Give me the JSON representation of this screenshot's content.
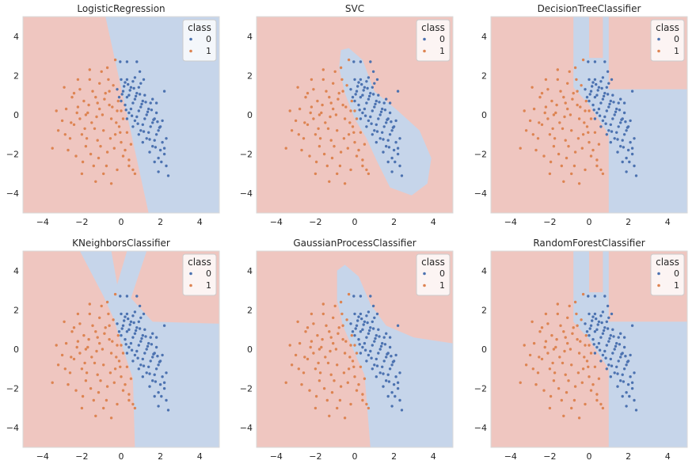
{
  "colors": {
    "class0": "#4c72b0",
    "class1": "#dd8452",
    "region0": "#c6d5ea",
    "region1": "#efc6c0",
    "frame": "#d9d9d9",
    "legend_bg": "#ffffff"
  },
  "chart_data": [
    {
      "type": "scatter",
      "title": "LogisticRegression",
      "xlim": [
        -5,
        5
      ],
      "ylim": [
        -5,
        5
      ],
      "xticks": [
        -4,
        -2,
        0,
        2,
        4
      ],
      "yticks": [
        -4,
        -2,
        0,
        2,
        4
      ],
      "tick_labels_x": [
        "−4",
        "−2",
        "0",
        "2",
        "4"
      ],
      "tick_labels_y": [
        "−4",
        "−2",
        "0",
        "2",
        "4"
      ],
      "legend": {
        "title": "class",
        "entries": [
          "0",
          "1"
        ],
        "placement": "top-right"
      },
      "decision_region_class0": [
        [
          -0.8,
          5
        ],
        [
          5,
          5
        ],
        [
          5,
          -5
        ],
        [
          1.4,
          -5
        ],
        [
          -0.8,
          5
        ]
      ]
    },
    {
      "type": "scatter",
      "title": "SVC",
      "xlim": [
        -5,
        5
      ],
      "ylim": [
        -5,
        5
      ],
      "xticks": [
        -4,
        -2,
        0,
        2,
        4
      ],
      "yticks": [
        -4,
        -2,
        0,
        2,
        4
      ],
      "tick_labels_x": [
        "−4",
        "−2",
        "0",
        "2",
        "4"
      ],
      "tick_labels_y": [
        "−4",
        "−2",
        "0",
        "2",
        "4"
      ],
      "legend": {
        "title": "class",
        "entries": [
          "0",
          "1"
        ],
        "placement": "top-right"
      },
      "decision_region_class0": [
        [
          -0.7,
          3.3
        ],
        [
          -0.3,
          3.4
        ],
        [
          0.4,
          2.8
        ],
        [
          1.0,
          1.2
        ],
        [
          2.2,
          0.2
        ],
        [
          3.3,
          -0.8
        ],
        [
          3.9,
          -2.2
        ],
        [
          3.7,
          -3.5
        ],
        [
          2.9,
          -4.1
        ],
        [
          1.8,
          -3.7
        ],
        [
          1.1,
          -2.3
        ],
        [
          0.6,
          -1.2
        ],
        [
          0.0,
          -0.2
        ],
        [
          -0.5,
          1.1
        ],
        [
          -0.8,
          2.4
        ],
        [
          -0.7,
          3.3
        ]
      ]
    },
    {
      "type": "scatter",
      "title": "DecisionTreeClassifier",
      "xlim": [
        -5,
        5
      ],
      "ylim": [
        -5,
        5
      ],
      "xticks": [
        -4,
        -2,
        0,
        2,
        4
      ],
      "yticks": [
        -4,
        -2,
        0,
        2,
        4
      ],
      "tick_labels_x": [
        "−4",
        "−2",
        "0",
        "2",
        "4"
      ],
      "tick_labels_y": [
        "−4",
        "−2",
        "0",
        "2",
        "4"
      ],
      "legend": {
        "title": "class",
        "entries": [
          "0",
          "1"
        ],
        "placement": "top-right"
      },
      "decision_region_class0": [
        [
          -0.8,
          5
        ],
        [
          0.0,
          5
        ],
        [
          0.0,
          2.9
        ],
        [
          0.7,
          2.9
        ],
        [
          0.7,
          5
        ],
        [
          1.0,
          5
        ],
        [
          1.0,
          1.3
        ],
        [
          5,
          1.3
        ],
        [
          5,
          -5
        ],
        [
          1.0,
          -5
        ],
        [
          1.0,
          -1.0
        ],
        [
          0.0,
          0.5
        ],
        [
          -0.8,
          1.4
        ],
        [
          -0.8,
          5
        ]
      ]
    },
    {
      "type": "scatter",
      "title": "KNeighborsClassifier",
      "xlim": [
        -5,
        5
      ],
      "ylim": [
        -5,
        5
      ],
      "xticks": [
        -4,
        -2,
        0,
        2,
        4
      ],
      "yticks": [
        -4,
        -2,
        0,
        2,
        4
      ],
      "tick_labels_x": [
        "−4",
        "−2",
        "0",
        "2",
        "4"
      ],
      "tick_labels_y": [
        "−4",
        "−2",
        "0",
        "2",
        "4"
      ],
      "legend": {
        "title": "class",
        "entries": [
          "0",
          "1"
        ],
        "placement": "top-right"
      },
      "decision_region_class0": [
        [
          -2.1,
          5
        ],
        [
          -0.5,
          5
        ],
        [
          -0.2,
          3.3
        ],
        [
          0.3,
          5
        ],
        [
          1.3,
          5
        ],
        [
          0.5,
          2.6
        ],
        [
          1.6,
          1.4
        ],
        [
          5,
          1.3
        ],
        [
          5,
          -5
        ],
        [
          0.7,
          -5
        ],
        [
          0.6,
          -1.5
        ],
        [
          0.0,
          0.3
        ],
        [
          -0.4,
          1.6
        ],
        [
          -0.9,
          2.7
        ],
        [
          -2.1,
          5
        ]
      ]
    },
    {
      "type": "scatter",
      "title": "GaussianProcessClassifier",
      "xlim": [
        -5,
        5
      ],
      "ylim": [
        -5,
        5
      ],
      "xticks": [
        -4,
        -2,
        0,
        2,
        4
      ],
      "yticks": [
        -4,
        -2,
        0,
        2,
        4
      ],
      "tick_labels_x": [
        "−4",
        "−2",
        "0",
        "2",
        "4"
      ],
      "tick_labels_y": [
        "−4",
        "−2",
        "0",
        "2",
        "4"
      ],
      "legend": {
        "title": "class",
        "entries": [
          "0",
          "1"
        ],
        "placement": "top-right"
      },
      "decision_region_class0": [
        [
          -0.9,
          4.0
        ],
        [
          -0.5,
          4.3
        ],
        [
          0.2,
          3.7
        ],
        [
          0.8,
          2.3
        ],
        [
          1.6,
          1.2
        ],
        [
          3.0,
          0.6
        ],
        [
          5,
          0.3
        ],
        [
          5,
          -5
        ],
        [
          0.8,
          -5
        ],
        [
          0.5,
          -1.3
        ],
        [
          0.0,
          -0.2
        ],
        [
          -0.6,
          1.2
        ],
        [
          -0.9,
          2.5
        ],
        [
          -0.9,
          4.0
        ]
      ]
    },
    {
      "type": "scatter",
      "title": "RandomForestClassifier",
      "xlim": [
        -5,
        5
      ],
      "ylim": [
        -5,
        5
      ],
      "xticks": [
        -4,
        -2,
        0,
        2,
        4
      ],
      "yticks": [
        -4,
        -2,
        0,
        2,
        4
      ],
      "tick_labels_x": [
        "−4",
        "−2",
        "0",
        "2",
        "4"
      ],
      "tick_labels_y": [
        "−4",
        "−2",
        "0",
        "2",
        "4"
      ],
      "legend": {
        "title": "class",
        "entries": [
          "0",
          "1"
        ],
        "placement": "top-right"
      },
      "decision_region_class0": [
        [
          -0.8,
          5
        ],
        [
          0.0,
          5
        ],
        [
          0.0,
          2.9
        ],
        [
          0.7,
          2.9
        ],
        [
          0.7,
          5
        ],
        [
          1.0,
          5
        ],
        [
          1.0,
          1.4
        ],
        [
          5,
          1.4
        ],
        [
          5,
          -5
        ],
        [
          1.0,
          -5
        ],
        [
          1.0,
          -1.0
        ],
        [
          0.0,
          0.5
        ],
        [
          -0.8,
          1.4
        ],
        [
          -0.8,
          5
        ]
      ]
    }
  ],
  "scatter_points": {
    "class0": [
      [
        0.2,
        1.65
      ],
      [
        0.5,
        1.4
      ],
      [
        0.8,
        1.1
      ],
      [
        1.1,
        0.7
      ],
      [
        1.4,
        0.3
      ],
      [
        1.7,
        -0.2
      ],
      [
        2.0,
        -0.6
      ],
      [
        2.3,
        -1.2
      ],
      [
        2.2,
        -1.7
      ],
      [
        2.4,
        -3.1
      ],
      [
        0.3,
        0.9
      ],
      [
        0.6,
        0.6
      ],
      [
        0.9,
        0.2
      ],
      [
        1.2,
        -0.2
      ],
      [
        1.5,
        -0.6
      ],
      [
        1.8,
        -1.0
      ],
      [
        2.1,
        -1.4
      ],
      [
        0.1,
        1.2
      ],
      [
        0.4,
        1.0
      ],
      [
        0.7,
        0.8
      ],
      [
        1.0,
        0.4
      ],
      [
        1.3,
        0.0
      ],
      [
        1.6,
        -0.4
      ],
      [
        1.9,
        -0.8
      ],
      [
        2.2,
        -2.0
      ],
      [
        0.0,
        1.8
      ],
      [
        0.3,
        1.8
      ],
      [
        0.6,
        1.7
      ],
      [
        0.9,
        1.4
      ],
      [
        1.2,
        1.0
      ],
      [
        1.5,
        0.6
      ],
      [
        1.8,
        0.1
      ],
      [
        2.1,
        -0.3
      ],
      [
        0.2,
        0.5
      ],
      [
        0.5,
        0.3
      ],
      [
        0.8,
        -0.1
      ],
      [
        1.1,
        -0.5
      ],
      [
        1.4,
        -0.9
      ],
      [
        1.7,
        -1.3
      ],
      [
        2.0,
        -1.8
      ],
      [
        0.0,
        0.7
      ],
      [
        0.4,
        0.1
      ],
      [
        0.7,
        -0.3
      ],
      [
        1.0,
        -0.8
      ],
      [
        1.3,
        -1.2
      ],
      [
        1.6,
        -1.6
      ],
      [
        1.9,
        -2.2
      ],
      [
        2.3,
        -2.6
      ],
      [
        0.15,
        1.45
      ],
      [
        0.45,
        1.25
      ],
      [
        0.75,
        0.95
      ],
      [
        1.05,
        0.55
      ],
      [
        1.35,
        0.15
      ],
      [
        1.65,
        -0.25
      ],
      [
        1.95,
        -0.65
      ],
      [
        0.25,
        0.25
      ],
      [
        0.55,
        -0.05
      ],
      [
        0.85,
        -0.45
      ],
      [
        1.15,
        -0.85
      ],
      [
        1.45,
        -1.25
      ],
      [
        1.75,
        -1.65
      ],
      [
        2.05,
        -2.4
      ],
      [
        0.35,
        1.55
      ],
      [
        0.65,
        1.35
      ],
      [
        0.95,
        1.05
      ],
      [
        1.25,
        0.65
      ],
      [
        1.55,
        0.25
      ],
      [
        1.85,
        -0.35
      ],
      [
        0.05,
        1.05
      ],
      [
        1.1,
        -1.4
      ],
      [
        1.45,
        -1.9
      ],
      [
        1.7,
        -2.4
      ],
      [
        1.9,
        -2.9
      ],
      [
        0.6,
        -0.6
      ],
      [
        0.9,
        -1.0
      ],
      [
        0.3,
        -0.2
      ],
      [
        -0.1,
        0.9
      ],
      [
        -0.2,
        1.3
      ],
      [
        0.8,
        2.7
      ],
      [
        0.3,
        2.7
      ],
      [
        -0.05,
        2.7
      ],
      [
        0.95,
        2.2
      ],
      [
        1.15,
        1.8
      ],
      [
        2.2,
        1.2
      ],
      [
        1.8,
        0.6
      ],
      [
        1.6,
        0.8
      ],
      [
        1.0,
        1.6
      ],
      [
        0.7,
        1.9
      ]
    ],
    "class1": [
      [
        -3.5,
        -1.7
      ],
      [
        -3.2,
        -0.8
      ],
      [
        -3.0,
        -0.3
      ],
      [
        -2.8,
        0.3
      ],
      [
        -2.6,
        -1.2
      ],
      [
        -2.5,
        0.9
      ],
      [
        -2.4,
        -0.5
      ],
      [
        -2.3,
        -2.1
      ],
      [
        -2.2,
        0.4
      ],
      [
        -2.1,
        1.3
      ],
      [
        -2.0,
        -1.0
      ],
      [
        -1.9,
        0.7
      ],
      [
        -1.8,
        -1.6
      ],
      [
        -1.7,
        0.1
      ],
      [
        -1.6,
        1.8
      ],
      [
        -1.5,
        -0.4
      ],
      [
        -1.4,
        -2.6
      ],
      [
        -1.3,
        0.9
      ],
      [
        -1.2,
        -1.3
      ],
      [
        -1.1,
        0.3
      ],
      [
        -1.0,
        2.2
      ],
      [
        -0.9,
        -0.8
      ],
      [
        -0.8,
        1.1
      ],
      [
        -0.7,
        -1.9
      ],
      [
        -0.6,
        0.5
      ],
      [
        -0.5,
        -0.2
      ],
      [
        -0.4,
        1.5
      ],
      [
        -0.3,
        -1.0
      ],
      [
        -0.2,
        0.2
      ],
      [
        -0.1,
        -0.6
      ],
      [
        0.0,
        -1.4
      ],
      [
        0.1,
        -0.2
      ],
      [
        0.2,
        -1.8
      ],
      [
        0.3,
        -0.9
      ],
      [
        0.4,
        -2.3
      ],
      [
        0.5,
        -1.5
      ],
      [
        0.6,
        -2.8
      ],
      [
        0.7,
        -3.0
      ],
      [
        -2.7,
        -1.8
      ],
      [
        -2.4,
        1.1
      ],
      [
        -2.1,
        -0.2
      ],
      [
        -1.85,
        -0.7
      ],
      [
        -1.65,
        0.5
      ],
      [
        -1.45,
        1.2
      ],
      [
        -1.25,
        -0.1
      ],
      [
        -1.05,
        -1.6
      ],
      [
        -0.85,
        0.8
      ],
      [
        -0.65,
        1.8
      ],
      [
        -0.45,
        0.4
      ],
      [
        -0.25,
        -0.4
      ],
      [
        -0.05,
        -0.9
      ],
      [
        -1.95,
        -2.4
      ],
      [
        -1.55,
        -2.0
      ],
      [
        -1.15,
        -2.2
      ],
      [
        -0.75,
        -2.6
      ],
      [
        -0.35,
        -1.7
      ],
      [
        -2.85,
        -1.0
      ],
      [
        -2.55,
        -0.4
      ],
      [
        -2.25,
        0.1
      ],
      [
        -1.75,
        -1.2
      ],
      [
        -1.35,
        -0.7
      ],
      [
        -0.95,
        0.0
      ],
      [
        -0.55,
        -1.2
      ],
      [
        -0.15,
        0.7
      ],
      [
        -1.1,
        1.6
      ],
      [
        -0.7,
        2.4
      ],
      [
        -0.3,
        2.8
      ],
      [
        -1.6,
        2.3
      ],
      [
        -2.2,
        1.8
      ],
      [
        -3.3,
        0.2
      ],
      [
        -2.9,
        1.4
      ],
      [
        -0.9,
        -3.0
      ],
      [
        -1.3,
        -3.4
      ],
      [
        -2.0,
        -3.0
      ],
      [
        -0.5,
        -3.5
      ],
      [
        0.4,
        -2.6
      ],
      [
        0.1,
        -2.1
      ],
      [
        -0.2,
        -2.8
      ],
      [
        -1.8,
        0.0
      ],
      [
        -1.2,
        0.6
      ],
      [
        -0.6,
        1.2
      ],
      [
        0.0,
        0.2
      ]
    ]
  }
}
